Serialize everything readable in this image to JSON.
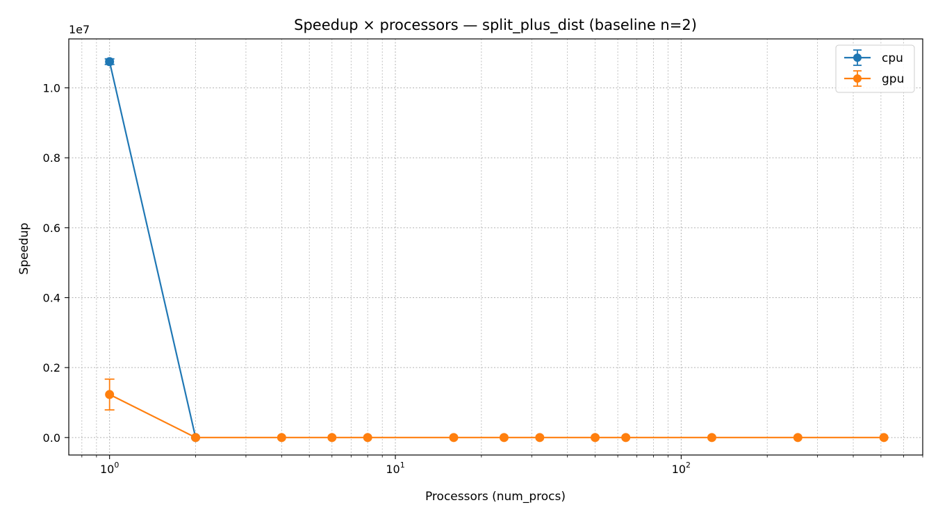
{
  "chart_data": {
    "type": "line",
    "title": "Speedup × processors — split_plus_dist (baseline n=2)",
    "xlabel": "Processors (num_procs)",
    "ylabel": "Speedup",
    "xscale": "log",
    "yscale": "linear",
    "y_offset_label": "1e7",
    "xlim": [
      0.72,
      700
    ],
    "ylim": [
      -500000,
      11400000
    ],
    "grid": true,
    "legend_position": "upper right",
    "x_major_ticks": [
      1,
      10,
      100
    ],
    "x_tick_labels": [
      {
        "base": "10",
        "exp": "0"
      },
      {
        "base": "10",
        "exp": "1"
      },
      {
        "base": "10",
        "exp": "2"
      }
    ],
    "y_ticks": [
      0,
      2000000,
      4000000,
      6000000,
      8000000,
      10000000
    ],
    "y_tick_labels": [
      "0.0",
      "0.2",
      "0.4",
      "0.6",
      "0.8",
      "1.0"
    ],
    "series": [
      {
        "name": "cpu",
        "color": "#1f77b4",
        "points": [
          {
            "x": 1,
            "y": 10750000,
            "err": 80000
          },
          {
            "x": 2,
            "y": 1
          }
        ]
      },
      {
        "name": "gpu",
        "color": "#ff7f0e",
        "points": [
          {
            "x": 1,
            "y": 1230000,
            "err": 440000
          },
          {
            "x": 2,
            "y": 1
          },
          {
            "x": 4,
            "y": 1
          },
          {
            "x": 6,
            "y": 1
          },
          {
            "x": 8,
            "y": 1
          },
          {
            "x": 16,
            "y": 1
          },
          {
            "x": 24,
            "y": 1
          },
          {
            "x": 32,
            "y": 1
          },
          {
            "x": 50,
            "y": 1
          },
          {
            "x": 64,
            "y": 1
          },
          {
            "x": 128,
            "y": 1
          },
          {
            "x": 256,
            "y": 1
          },
          {
            "x": 512,
            "y": 1
          }
        ]
      }
    ]
  }
}
